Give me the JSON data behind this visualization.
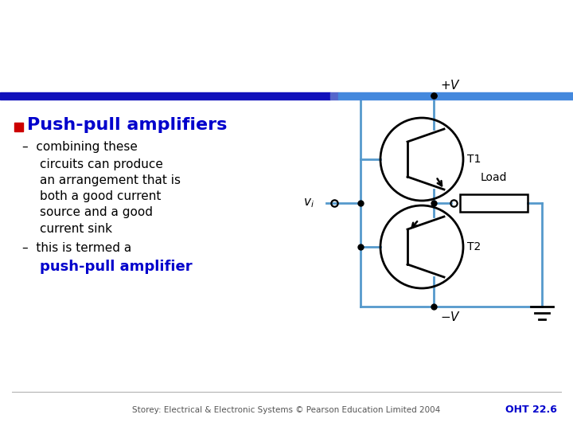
{
  "bg_color": "#ffffff",
  "bar_color_dark": "#1111bb",
  "bar_color_light": "#4488dd",
  "bullet_color": "#cc0000",
  "heading_color": "#0000cc",
  "body_color": "#000000",
  "highlight_color": "#0000cc",
  "circuit_color": "#5599cc",
  "transistor_color": "#000000",
  "heading_text": "Push-pull amplifiers",
  "bullet1_lines": [
    "–  combining these",
    "    circuits can produce",
    "    an arrangement that is",
    "    both a good current",
    "    source and a good",
    "    current sink"
  ],
  "bullet2_line1": "–  this is termed a",
  "bullet2_line2": "    push-pull amplifier",
  "footer_text": "Storey: Electrical & Electronic Systems © Pearson Education Limited 2004",
  "footer_right": "OHT 22.6"
}
